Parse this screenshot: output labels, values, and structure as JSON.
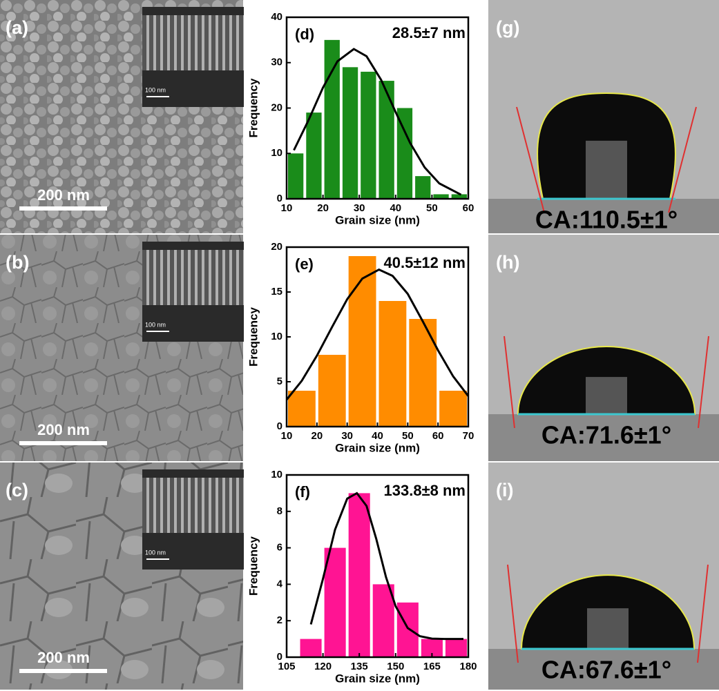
{
  "chart_data": [
    {
      "type": "histogram",
      "label": "(d)",
      "annotation": "28.5±7 nm",
      "xlabel": "Grain size (nm)",
      "ylabel": "Frequency",
      "bins": [
        10,
        15,
        20,
        25,
        30,
        35,
        40,
        45,
        50,
        55,
        60
      ],
      "values": [
        10,
        19,
        35,
        29,
        28,
        26,
        20,
        5,
        1,
        1
      ],
      "color": "#1a8c1a",
      "fit": {
        "x": [
          12,
          16,
          20,
          24,
          28.5,
          32,
          36,
          40,
          44,
          48,
          52,
          58
        ],
        "values": [
          10.7,
          17.3,
          24.5,
          30.3,
          33,
          31.4,
          26.2,
          19.1,
          12.3,
          6.9,
          3.4,
          0.9
        ],
        "color": "#000000"
      },
      "xlim": [
        10,
        60
      ],
      "xticks": [
        10,
        20,
        30,
        40,
        50,
        60
      ],
      "ylim": [
        0,
        40
      ],
      "yticks": [
        0,
        10,
        20,
        30,
        40
      ]
    },
    {
      "type": "histogram",
      "label": "(e)",
      "annotation": "40.5±12 nm",
      "xlabel": "Grain size (nm)",
      "ylabel": "Frequency",
      "bins": [
        10,
        20,
        30,
        40,
        50,
        60,
        70
      ],
      "values": [
        4,
        8,
        19,
        14,
        12,
        4
      ],
      "color": "#ff8c00",
      "fit": {
        "x": [
          10,
          15,
          20,
          25,
          30,
          35,
          40.5,
          45,
          50,
          55,
          60,
          65,
          70
        ],
        "values": [
          3.0,
          5.1,
          7.9,
          11.1,
          14.2,
          16.5,
          17.5,
          16.8,
          14.8,
          11.7,
          8.5,
          5.6,
          3.4
        ],
        "color": "#000000"
      },
      "xlim": [
        10,
        70
      ],
      "xticks": [
        10,
        20,
        30,
        40,
        50,
        60,
        70
      ],
      "ylim": [
        0,
        20
      ],
      "yticks": [
        0,
        5,
        10,
        15,
        20
      ]
    },
    {
      "type": "histogram",
      "label": "(f)",
      "annotation": "133.8±8 nm",
      "xlabel": "Grain size (nm)",
      "ylabel": "Frequency",
      "bins": [
        110,
        120,
        130,
        140,
        150,
        160,
        170,
        180
      ],
      "values": [
        1,
        6,
        9,
        4,
        3,
        1,
        1
      ],
      "color": "#ff1493",
      "fit": {
        "x": [
          115,
          120,
          125,
          130,
          134,
          138,
          142,
          146,
          150,
          155,
          160,
          165,
          170,
          175,
          178
        ],
        "values": [
          1.8,
          4.3,
          7,
          8.7,
          9,
          8.3,
          6.5,
          4.4,
          2.8,
          1.6,
          1.15,
          1.02,
          1,
          1,
          1
        ],
        "color": "#000000"
      },
      "xlim": [
        105,
        180
      ],
      "xticks": [
        105,
        120,
        135,
        150,
        165,
        180
      ],
      "ylim": [
        0,
        10
      ],
      "yticks": [
        0,
        2,
        4,
        6,
        8,
        10
      ]
    }
  ],
  "sem_panels": [
    {
      "label": "(a)",
      "scale": "200 nm",
      "inset_scale": "100 nm"
    },
    {
      "label": "(b)",
      "scale": "200 nm",
      "inset_scale": "100 nm"
    },
    {
      "label": "(c)",
      "scale": "200 nm",
      "inset_scale": "100 nm"
    }
  ],
  "contact_angle_panels": [
    {
      "label": "(g)",
      "text": "CA:110.5±1°"
    },
    {
      "label": "(h)",
      "text": "CA:71.6±1°"
    },
    {
      "label": "(i)",
      "text": "CA:67.6±1°"
    }
  ]
}
